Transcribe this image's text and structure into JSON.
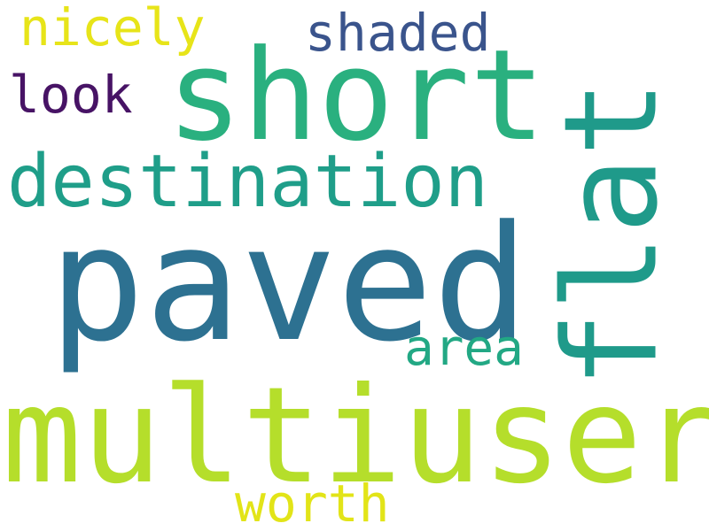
{
  "words": {
    "paved": {
      "text": "paved",
      "color": "#2d7191"
    },
    "multiuser": {
      "text": "multiuser",
      "color": "#b5de2b"
    },
    "short": {
      "text": "short",
      "color": "#2ab07f"
    },
    "destination": {
      "text": "destination",
      "color": "#1f9e89"
    },
    "flat": {
      "text": "flat",
      "color": "#1f9a8a",
      "orientation": "vertical"
    },
    "shaded": {
      "text": "shaded",
      "color": "#3a548c"
    },
    "look": {
      "text": "look",
      "color": "#471365"
    },
    "nicely": {
      "text": "nicely",
      "color": "#e7e419"
    },
    "area": {
      "text": "area",
      "color": "#22a884"
    },
    "worth": {
      "text": "worth",
      "color": "#e2e418"
    }
  },
  "background": "#ffffff"
}
